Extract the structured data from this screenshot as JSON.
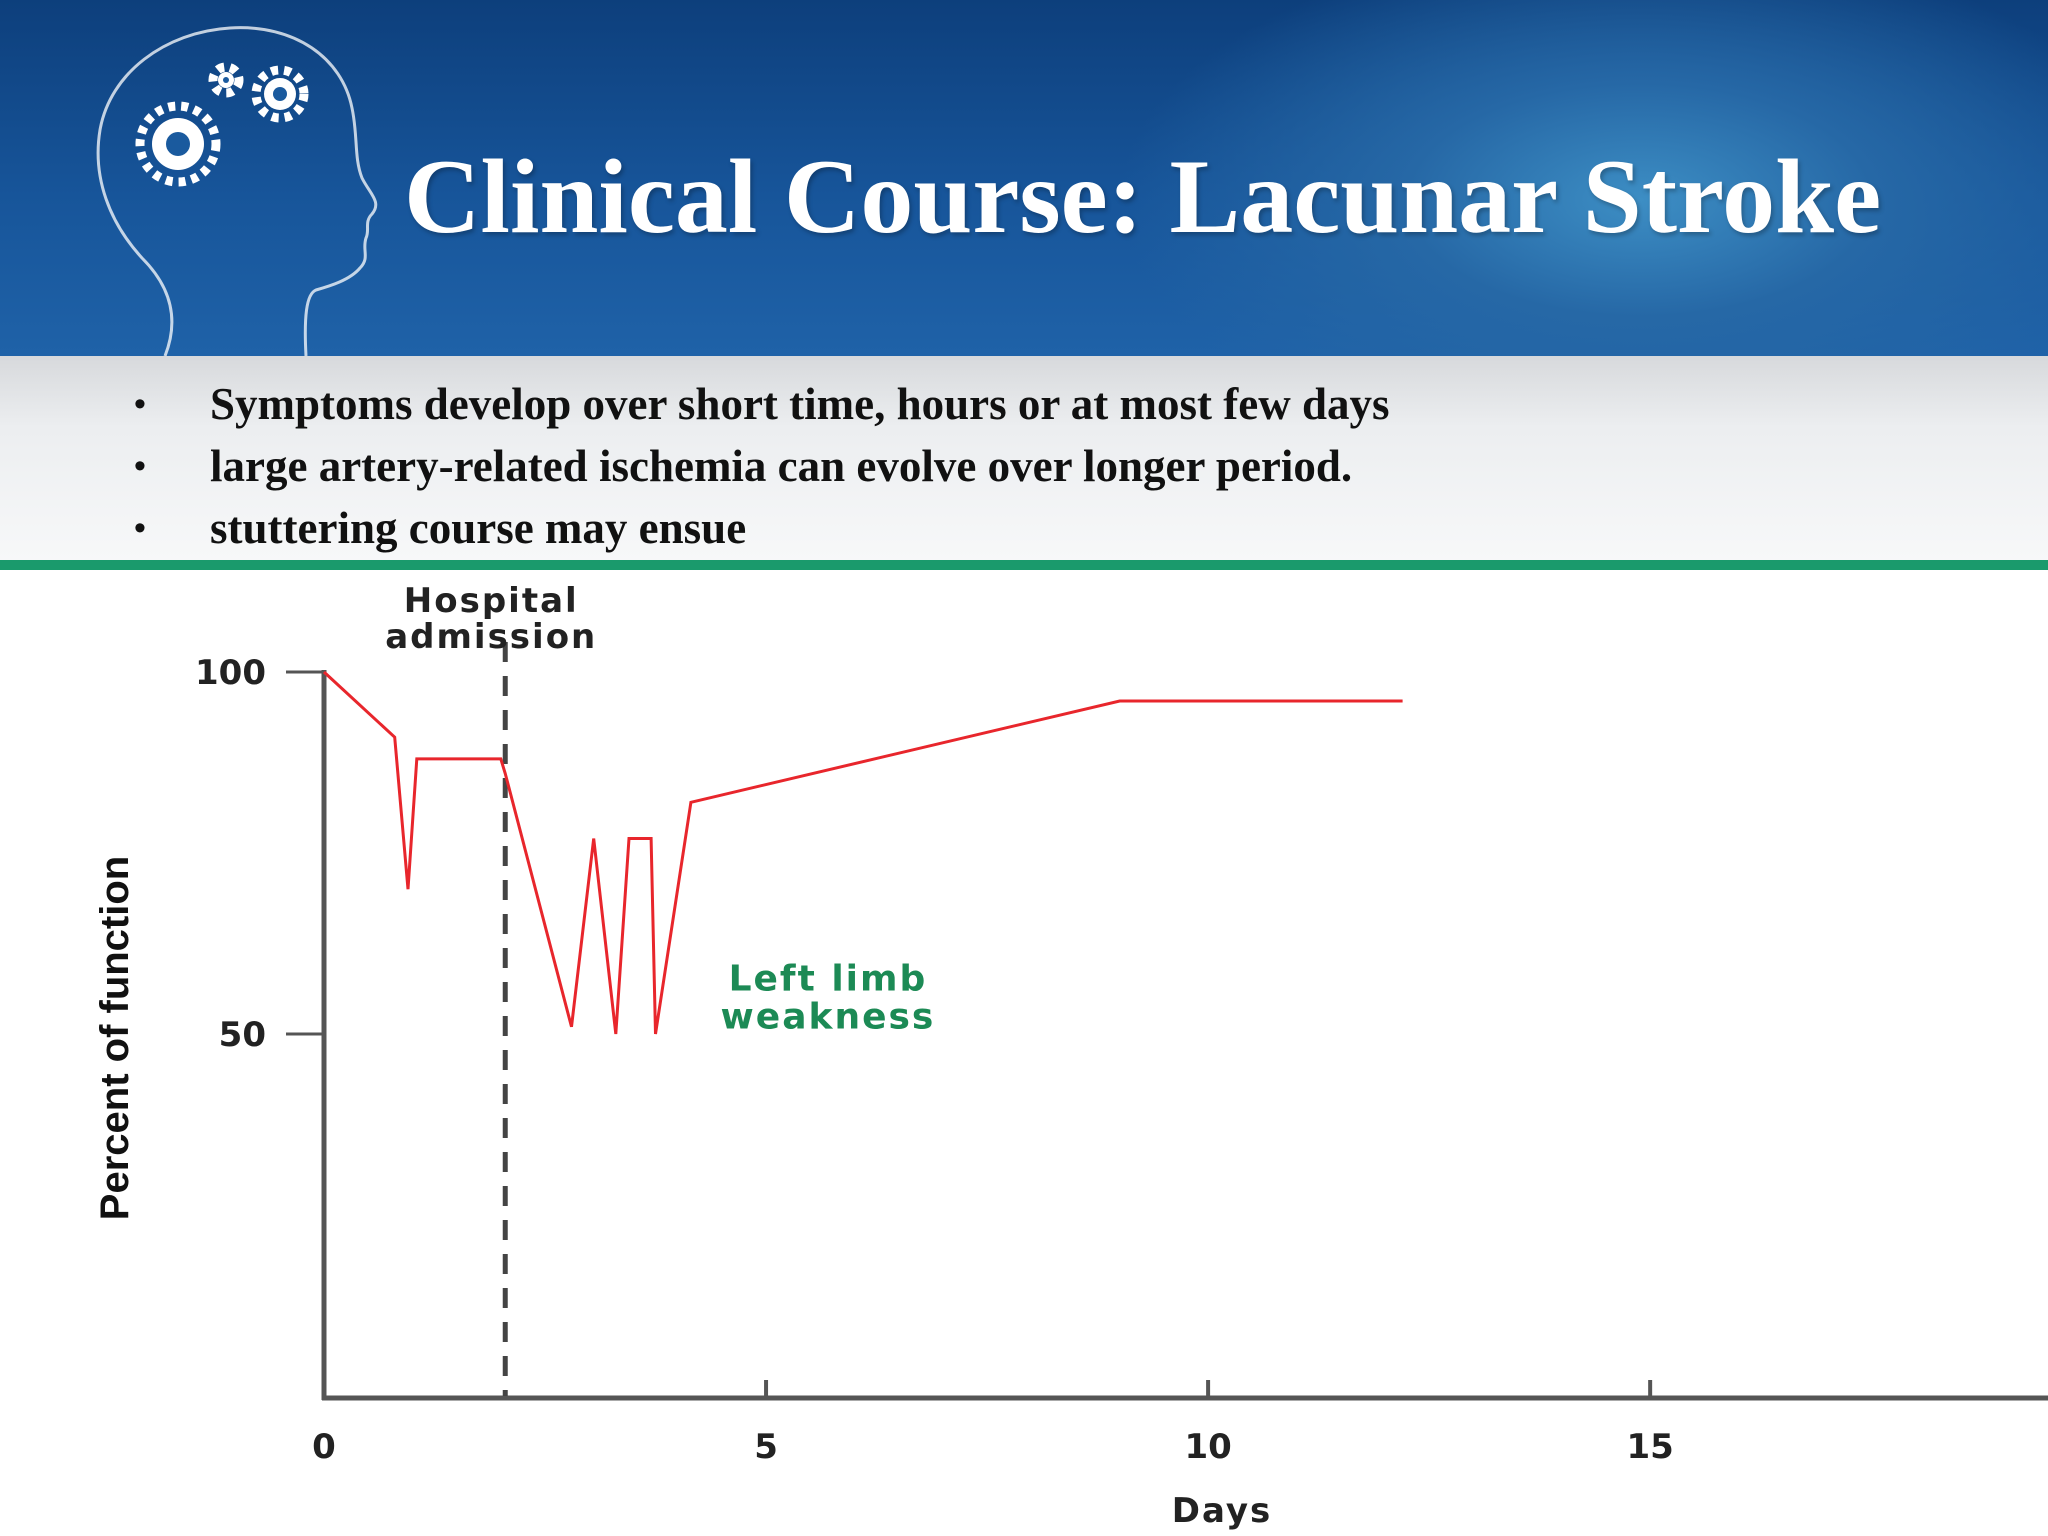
{
  "slide": {
    "title": "Clinical Course: Lacunar Stroke",
    "bullets": [
      "Symptoms  develop over short time, hours or at most  few days",
      "large artery-related  ischemia can evolve over longer period.",
      "stuttering course may ensue"
    ],
    "bullet_glyph": "•",
    "colors": {
      "banner": "#17559a",
      "divider": "#1a9a6c",
      "title": "#ffffff"
    },
    "icons": [
      "head-with-gears-icon"
    ]
  },
  "chart_data": {
    "type": "line",
    "title": "",
    "xlabel": "Days",
    "ylabel": "Percent of function",
    "xlim": [
      0,
      19.5
    ],
    "ylim": [
      0,
      100
    ],
    "x_ticks": [
      0,
      5,
      10,
      15
    ],
    "x_tick_labels": [
      "0",
      "5",
      "10",
      "15"
    ],
    "y_ticks": [
      50,
      100
    ],
    "y_tick_labels": [
      "50",
      "100"
    ],
    "grid": false,
    "legend": "none",
    "series": [
      {
        "color": "#e8262c",
        "x": [
          0,
          0.8,
          0.95,
          1.05,
          2.0,
          2.05,
          2.8,
          3.05,
          3.3,
          3.45,
          3.55,
          3.7,
          3.75,
          4.15,
          9.0,
          12.2
        ],
        "y": [
          100,
          91,
          70,
          88,
          88,
          86,
          51,
          77,
          50,
          77,
          77,
          77,
          50,
          82,
          96,
          96
        ]
      }
    ],
    "annotations": [
      {
        "type": "vline",
        "x": 2.05,
        "style": "dashed",
        "label": [
          "Hospital",
          "admission"
        ]
      },
      {
        "type": "text",
        "x": 5.7,
        "y": 56,
        "color": "#1c8a55",
        "label": [
          "Left limb",
          "weakness"
        ]
      }
    ]
  }
}
